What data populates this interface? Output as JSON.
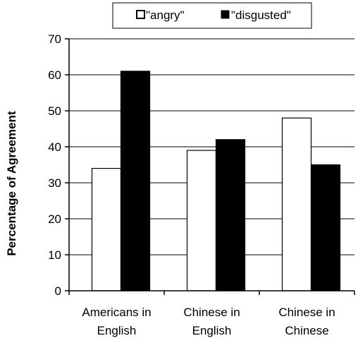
{
  "chart_data": {
    "type": "bar",
    "title": "",
    "xlabel": "",
    "ylabel": "Percentage of Agreement",
    "categories": [
      [
        "Americans in",
        "English"
      ],
      [
        "Chinese in",
        "English"
      ],
      [
        "Chinese in",
        "Chinese"
      ]
    ],
    "series": [
      {
        "name": "\"angry\"",
        "values": [
          34,
          39,
          48
        ],
        "color": "#ffffff"
      },
      {
        "name": "\"disgusted\"",
        "values": [
          61,
          42,
          35
        ],
        "color": "#000000"
      }
    ],
    "ylim": [
      0,
      70
    ],
    "yticks": [
      0,
      10,
      20,
      30,
      40,
      50,
      60,
      70
    ],
    "grid": true,
    "legend_position": "top-center"
  }
}
